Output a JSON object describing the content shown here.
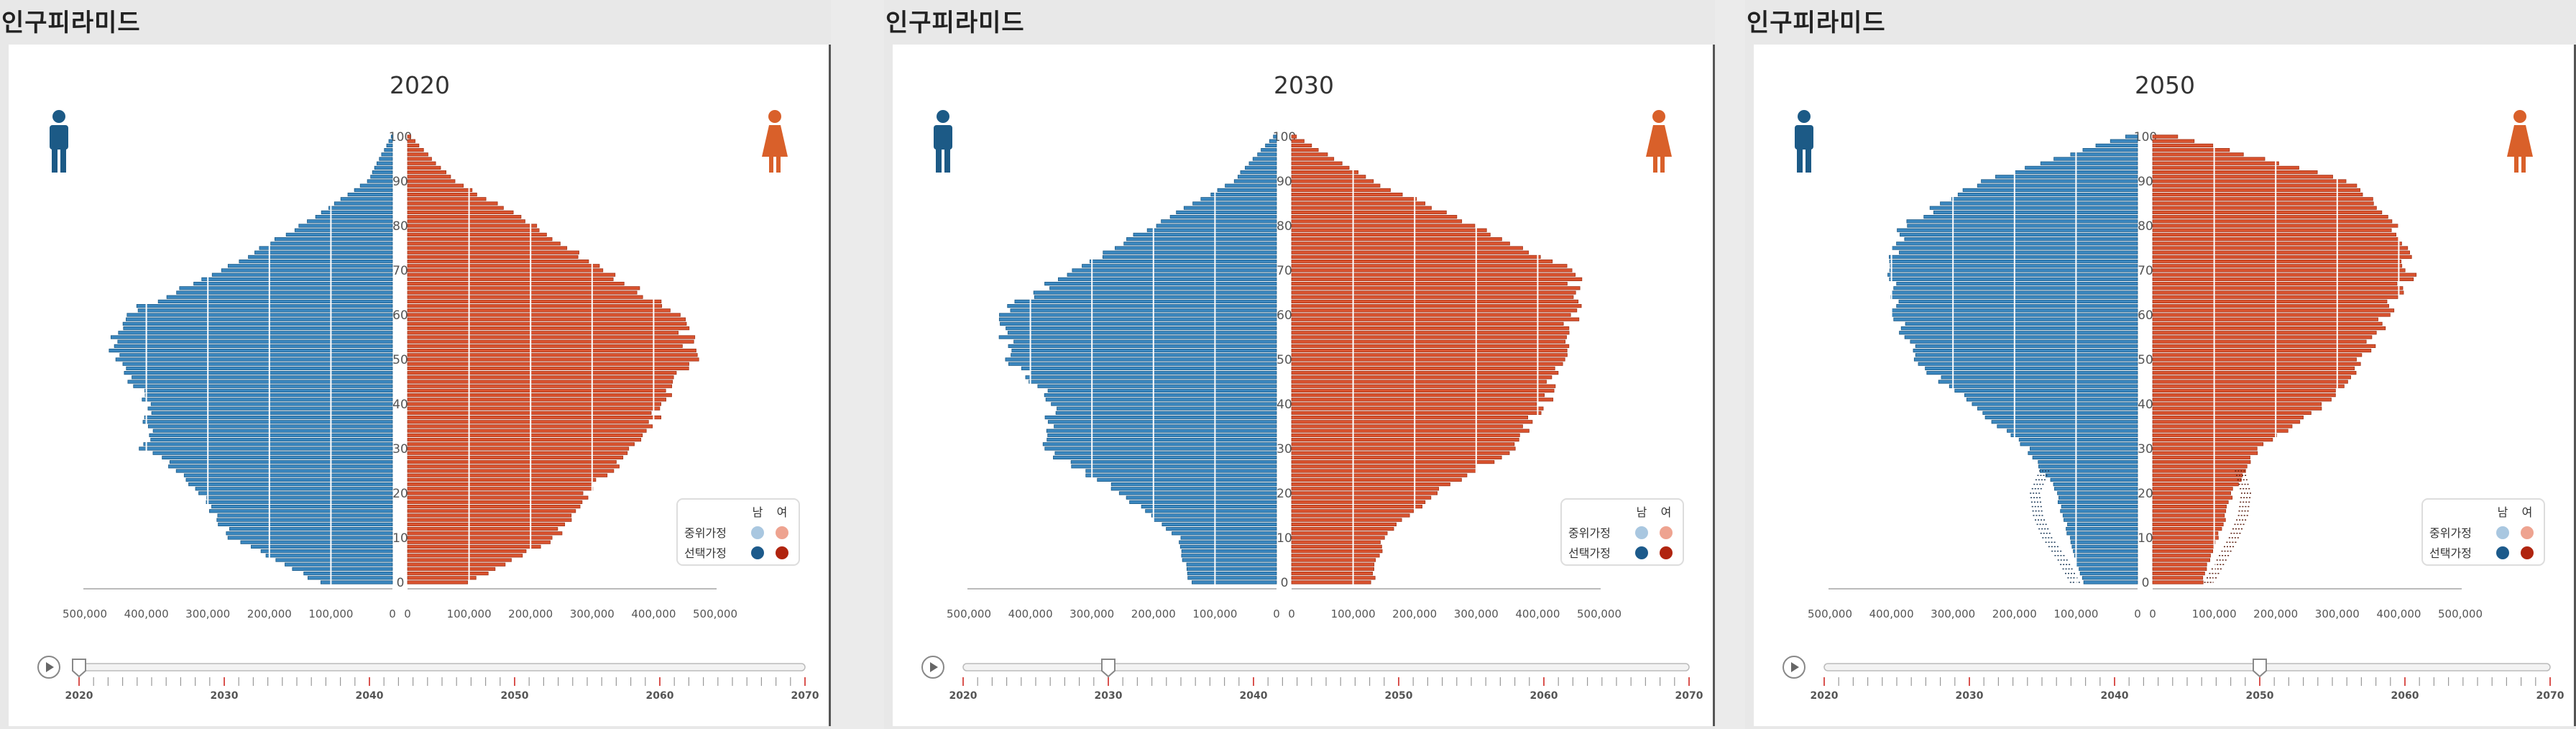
{
  "panel_title": "인구피라미드",
  "legend": {
    "male": "남",
    "female": "여",
    "median": "중위가정",
    "selected": "선택가정"
  },
  "colors": {
    "male": "#3b87bf",
    "male_dark": "#1c5a86",
    "female": "#d9532f",
    "female_dark": "#a33418",
    "median_male": "#a9c7e0",
    "median_female": "#eea390",
    "selected_male": "#1c5a8b",
    "selected_female": "#b0240f"
  },
  "icons": {
    "male": "male-person-icon",
    "female": "female-person-icon",
    "play": "play-icon"
  },
  "chart_data": [
    {
      "type": "bar",
      "title": "2020",
      "y_ticks": [
        0,
        10,
        20,
        30,
        40,
        50,
        60,
        70,
        80,
        90,
        100
      ],
      "x_ticks_male": [
        "500,000",
        "400,000",
        "300,000",
        "200,000",
        "100,000",
        "0"
      ],
      "x_ticks_female": [
        "0",
        "100,000",
        "200,000",
        "300,000",
        "400,000",
        "500,000"
      ],
      "xlim": [
        0,
        500000
      ],
      "ages": [
        0,
        10,
        20,
        30,
        40,
        50,
        60,
        70,
        80,
        90,
        100
      ],
      "male": [
        120000,
        260000,
        310000,
        400000,
        390000,
        455000,
        440000,
        280000,
        150000,
        40000,
        2000
      ],
      "female": [
        100000,
        240000,
        290000,
        370000,
        415000,
        465000,
        445000,
        315000,
        210000,
        75000,
        5000
      ],
      "male_median_band": [],
      "female_median_band": []
    },
    {
      "type": "bar",
      "title": "2030",
      "y_ticks": [
        0,
        10,
        20,
        30,
        40,
        50,
        60,
        70,
        80,
        90,
        100
      ],
      "x_ticks_male": [
        "500,000",
        "400,000",
        "300,000",
        "200,000",
        "100,000",
        "0"
      ],
      "x_ticks_female": [
        "0",
        "100,000",
        "200,000",
        "300,000",
        "400,000",
        "500,000"
      ],
      "xlim": [
        0,
        500000
      ],
      "ages": [
        0,
        10,
        20,
        30,
        40,
        50,
        60,
        70,
        80,
        90,
        100
      ],
      "male": [
        140000,
        160000,
        250000,
        380000,
        360000,
        430000,
        450000,
        330000,
        200000,
        70000,
        5000
      ],
      "female": [
        130000,
        150000,
        230000,
        360000,
        410000,
        435000,
        460000,
        460000,
        300000,
        130000,
        8000
      ],
      "male_median_band": [],
      "female_median_band": []
    },
    {
      "type": "bar",
      "title": "2050",
      "y_ticks": [
        0,
        10,
        20,
        30,
        40,
        50,
        60,
        70,
        80,
        90,
        100
      ],
      "x_ticks_male": [
        "500,000",
        "400,000",
        "300,000",
        "200,000",
        "100,000",
        "0"
      ],
      "x_ticks_female": [
        "0",
        "100,000",
        "200,000",
        "300,000",
        "400,000",
        "500,000"
      ],
      "xlim": [
        0,
        500000
      ],
      "ages": [
        0,
        10,
        20,
        30,
        40,
        50,
        60,
        70,
        80,
        90,
        100
      ],
      "male": [
        90000,
        110000,
        130000,
        180000,
        270000,
        360000,
        390000,
        400000,
        380000,
        250000,
        20000
      ],
      "female": [
        80000,
        105000,
        130000,
        170000,
        280000,
        340000,
        380000,
        420000,
        395000,
        320000,
        40000
      ],
      "male_median_band": [
        [
          0,
          110000
        ],
        [
          5,
          130000
        ],
        [
          10,
          155000
        ],
        [
          15,
          170000
        ],
        [
          20,
          175000
        ],
        [
          25,
          160000
        ]
      ],
      "female_median_band": [
        [
          0,
          100000
        ],
        [
          5,
          120000
        ],
        [
          10,
          140000
        ],
        [
          15,
          155000
        ],
        [
          20,
          160000
        ],
        [
          25,
          150000
        ]
      ]
    }
  ],
  "timeline": {
    "labels": [
      "2020",
      "2030",
      "2040",
      "2050",
      "2060",
      "2070"
    ],
    "min": 2020,
    "max": 2070,
    "current": [
      2020,
      2030,
      2050
    ]
  }
}
